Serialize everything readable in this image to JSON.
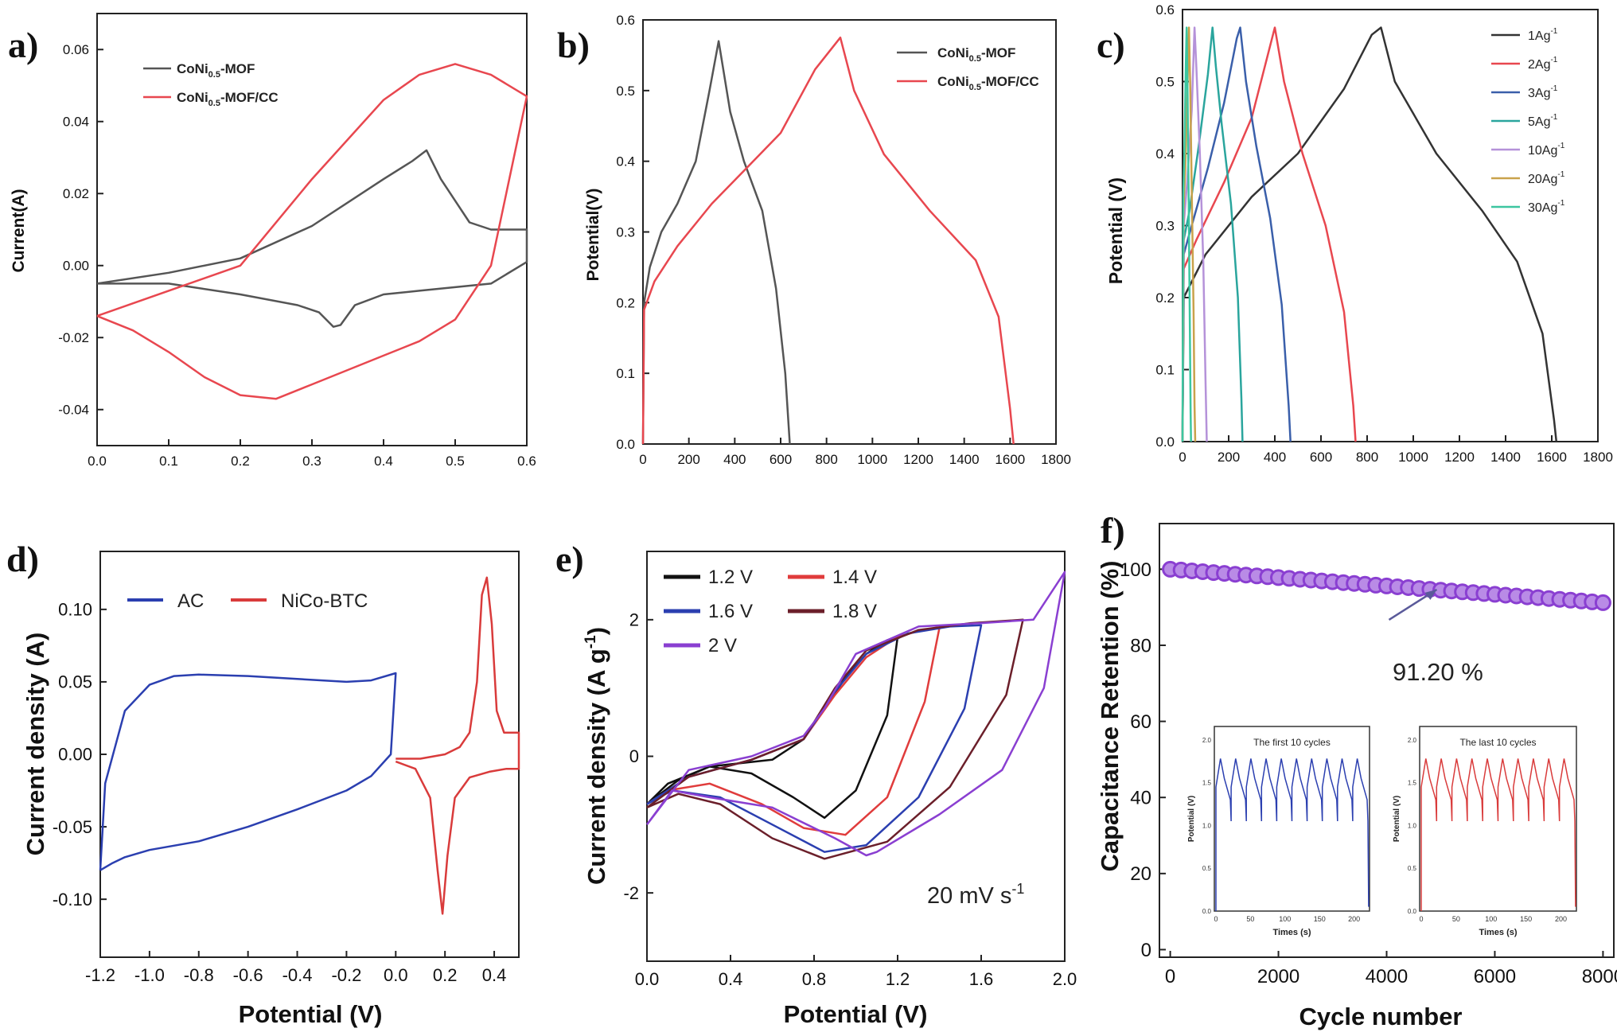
{
  "chart_data": [
    {
      "panel": "a)",
      "type": "line",
      "ylabel": "Current(A)",
      "xlim": [
        0.0,
        0.6
      ],
      "ylim": [
        -0.05,
        0.07
      ],
      "xticks": [
        "0.0",
        "0.1",
        "0.2",
        "0.3",
        "0.4",
        "0.5",
        "0.6"
      ],
      "yticks": [
        "-0.04",
        "-0.02",
        "0.00",
        "0.02",
        "0.04",
        "0.06"
      ],
      "legend_position": "top-left",
      "series": [
        {
          "name": "CoNi0.5-MOF",
          "label_main": "CoNi",
          "label_sub": "0.5",
          "label_tail": "-MOF",
          "color": "#555555",
          "x": [
            0.0,
            0.1,
            0.2,
            0.3,
            0.4,
            0.44,
            0.46,
            0.48,
            0.52,
            0.55,
            0.6,
            0.6,
            0.55,
            0.5,
            0.45,
            0.4,
            0.36,
            0.34,
            0.33,
            0.31,
            0.28,
            0.2,
            0.1,
            0.0
          ],
          "y": [
            -0.005,
            -0.002,
            0.002,
            0.011,
            0.024,
            0.029,
            0.032,
            0.024,
            0.012,
            0.01,
            0.01,
            0.001,
            -0.005,
            -0.006,
            -0.007,
            -0.008,
            -0.011,
            -0.0165,
            -0.017,
            -0.013,
            -0.011,
            -0.008,
            -0.005,
            -0.005
          ]
        },
        {
          "name": "CoNi0.5-MOF/CC",
          "label_main": "CoNi",
          "label_sub": "0.5",
          "label_tail": "-MOF/CC",
          "color": "#e8474f",
          "x": [
            0.0,
            0.1,
            0.2,
            0.3,
            0.4,
            0.45,
            0.5,
            0.55,
            0.6,
            0.6,
            0.55,
            0.5,
            0.45,
            0.4,
            0.35,
            0.3,
            0.25,
            0.2,
            0.15,
            0.1,
            0.05,
            0.0
          ],
          "y": [
            -0.014,
            -0.007,
            0.0,
            0.024,
            0.046,
            0.053,
            0.056,
            0.053,
            0.047,
            0.047,
            0.0,
            -0.015,
            -0.021,
            -0.025,
            -0.029,
            -0.033,
            -0.037,
            -0.036,
            -0.031,
            -0.024,
            -0.018,
            -0.014
          ]
        }
      ]
    },
    {
      "panel": "b)",
      "type": "line",
      "ylabel": "Potential(V)",
      "xlim": [
        0,
        1800
      ],
      "ylim": [
        0.0,
        0.6
      ],
      "xticks": [
        "0",
        "200",
        "400",
        "600",
        "800",
        "1000",
        "1200",
        "1400",
        "1600",
        "1800"
      ],
      "yticks": [
        "0.0",
        "0.1",
        "0.2",
        "0.3",
        "0.4",
        "0.5",
        "0.6"
      ],
      "legend_position": "top-right",
      "series": [
        {
          "name": "CoNi0.5-MOF",
          "label_main": "CoNi",
          "label_sub": "0.5",
          "label_tail": "-MOF",
          "color": "#555555",
          "x": [
            0,
            5,
            30,
            80,
            150,
            230,
            290,
            330,
            380,
            440,
            520,
            580,
            620,
            640
          ],
          "y": [
            0.0,
            0.2,
            0.25,
            0.3,
            0.34,
            0.4,
            0.5,
            0.57,
            0.47,
            0.4,
            0.33,
            0.22,
            0.1,
            0.0
          ]
        },
        {
          "name": "CoNi0.5-MOF/CC",
          "label_main": "CoNi",
          "label_sub": "0.5",
          "label_tail": "-MOF/CC",
          "color": "#e8474f",
          "x": [
            0,
            5,
            50,
            150,
            300,
            450,
            600,
            750,
            860,
            920,
            1050,
            1250,
            1450,
            1550,
            1600,
            1615
          ],
          "y": [
            0.0,
            0.19,
            0.23,
            0.28,
            0.34,
            0.39,
            0.44,
            0.53,
            0.575,
            0.5,
            0.41,
            0.33,
            0.26,
            0.18,
            0.05,
            0.0
          ]
        }
      ]
    },
    {
      "panel": "c)",
      "type": "line",
      "ylabel": "Potential (V)",
      "xlim": [
        0,
        1800
      ],
      "ylim": [
        0.0,
        0.6
      ],
      "xticks": [
        "0",
        "200",
        "400",
        "600",
        "800",
        "1000",
        "1200",
        "1400",
        "1600",
        "1800"
      ],
      "yticks": [
        "0.0",
        "0.1",
        "0.2",
        "0.3",
        "0.4",
        "0.5",
        "0.6"
      ],
      "legend_position": "top-right",
      "series": [
        {
          "name": "1Ag-1",
          "label_main": "1Ag",
          "label_sup": "-1",
          "color": "#333333",
          "x": [
            0,
            5,
            100,
            300,
            500,
            700,
            820,
            860,
            920,
            1100,
            1300,
            1450,
            1560,
            1610,
            1620
          ],
          "y": [
            0.0,
            0.2,
            0.26,
            0.34,
            0.4,
            0.49,
            0.565,
            0.575,
            0.5,
            0.4,
            0.32,
            0.25,
            0.15,
            0.03,
            0.0
          ]
        },
        {
          "name": "2Ag-1",
          "label_main": "2Ag",
          "label_sup": "-1",
          "color": "#e8474f",
          "x": [
            0,
            5,
            60,
            180,
            300,
            380,
            400,
            440,
            520,
            620,
            700,
            740,
            750
          ],
          "y": [
            0.0,
            0.24,
            0.28,
            0.36,
            0.45,
            0.55,
            0.575,
            0.5,
            0.4,
            0.3,
            0.18,
            0.05,
            0.0
          ]
        },
        {
          "name": "3Ag-1",
          "label_main": "3Ag",
          "label_sup": "-1",
          "color": "#3a5faa",
          "x": [
            0,
            5,
            40,
            110,
            180,
            235,
            250,
            275,
            320,
            380,
            430,
            460,
            468
          ],
          "y": [
            0.0,
            0.26,
            0.3,
            0.38,
            0.47,
            0.56,
            0.575,
            0.5,
            0.41,
            0.31,
            0.19,
            0.05,
            0.0
          ]
        },
        {
          "name": "5Ag-1",
          "label_main": "5Ag",
          "label_sup": "-1",
          "color": "#2aa59d",
          "x": [
            0,
            5,
            30,
            70,
            110,
            130,
            145,
            170,
            210,
            240,
            255,
            260
          ],
          "y": [
            0.0,
            0.28,
            0.32,
            0.41,
            0.51,
            0.575,
            0.52,
            0.44,
            0.33,
            0.2,
            0.06,
            0.0
          ]
        },
        {
          "name": "10Ag-1",
          "label_main": "10Ag",
          "label_sup": "-1",
          "color": "#b592d9",
          "x": [
            0,
            5,
            20,
            40,
            52,
            60,
            75,
            90,
            100,
            105
          ],
          "y": [
            0.0,
            0.3,
            0.36,
            0.46,
            0.575,
            0.52,
            0.4,
            0.25,
            0.08,
            0.0
          ]
        },
        {
          "name": "20Ag-1",
          "label_main": "20Ag",
          "label_sup": "-1",
          "color": "#c9a24b",
          "x": [
            0,
            4,
            12,
            22,
            28,
            33,
            40,
            48,
            52,
            55
          ],
          "y": [
            0.0,
            0.32,
            0.38,
            0.5,
            0.575,
            0.5,
            0.35,
            0.18,
            0.05,
            0.0
          ]
        },
        {
          "name": "30Ag-1",
          "label_main": "30Ag",
          "label_sup": "-1",
          "color": "#3cc6a0",
          "x": [
            0,
            3,
            8,
            14,
            18,
            22,
            27,
            32,
            35,
            37
          ],
          "y": [
            0.0,
            0.34,
            0.4,
            0.52,
            0.575,
            0.48,
            0.33,
            0.15,
            0.04,
            0.0
          ]
        }
      ]
    },
    {
      "panel": "d)",
      "type": "line",
      "xlabel": "Potential (V)",
      "ylabel": "Current density (A)",
      "xlim": [
        -1.2,
        0.5
      ],
      "ylim": [
        -0.14,
        0.14
      ],
      "xticks": [
        "-1.2",
        "-1.0",
        "-0.8",
        "-0.6",
        "-0.4",
        "-0.2",
        "0.0",
        "0.2",
        "0.4"
      ],
      "yticks": [
        "-0.10",
        "-0.05",
        "0.00",
        "0.05",
        "0.10"
      ],
      "legend_position": "top-left",
      "series": [
        {
          "name": "AC",
          "color": "#2b3fb0",
          "x": [
            -1.2,
            -1.18,
            -1.1,
            -1.0,
            -0.9,
            -0.8,
            -0.6,
            -0.4,
            -0.2,
            -0.1,
            0.0,
            -0.02,
            -0.1,
            -0.2,
            -0.4,
            -0.6,
            -0.8,
            -1.0,
            -1.1,
            -1.15,
            -1.2
          ],
          "y": [
            -0.08,
            -0.02,
            0.03,
            0.048,
            0.054,
            0.055,
            0.054,
            0.052,
            0.05,
            0.051,
            0.056,
            0.0,
            -0.015,
            -0.025,
            -0.038,
            -0.05,
            -0.06,
            -0.066,
            -0.071,
            -0.075,
            -0.08
          ]
        },
        {
          "name": "NiCo-BTC",
          "color": "#d93b3b",
          "x": [
            0.0,
            0.1,
            0.2,
            0.26,
            0.3,
            0.33,
            0.35,
            0.37,
            0.39,
            0.41,
            0.44,
            0.5,
            0.5,
            0.45,
            0.38,
            0.3,
            0.24,
            0.21,
            0.19,
            0.17,
            0.14,
            0.08,
            0.0
          ],
          "y": [
            -0.003,
            -0.003,
            0.0,
            0.005,
            0.015,
            0.05,
            0.11,
            0.122,
            0.09,
            0.03,
            0.015,
            0.015,
            -0.01,
            -0.01,
            -0.012,
            -0.016,
            -0.03,
            -0.07,
            -0.11,
            -0.08,
            -0.03,
            -0.01,
            -0.005
          ]
        }
      ]
    },
    {
      "panel": "e)",
      "type": "line",
      "xlabel": "Potential (V)",
      "ylabel": "Current density (A g-1)",
      "ylabel_main": "Current density (A g",
      "ylabel_sup": "-1",
      "ylabel_tail": ")",
      "annotation_main": "20 mV s",
      "annotation_sup": "-1",
      "xlim": [
        0.0,
        2.0
      ],
      "ylim": [
        -3.0,
        3.0
      ],
      "xticks": [
        "0.0",
        "0.4",
        "0.8",
        "1.2",
        "1.6",
        "2.0"
      ],
      "yticks": [
        "-2",
        "0",
        "2"
      ],
      "legend_position": "top-left",
      "series": [
        {
          "name": "1.2 V",
          "color": "#111111",
          "x": [
            0.0,
            0.1,
            0.3,
            0.6,
            0.75,
            0.85,
            0.95,
            1.05,
            1.15,
            1.2,
            1.15,
            1.0,
            0.85,
            0.7,
            0.5,
            0.3,
            0.15,
            0.0
          ],
          "y": [
            -0.7,
            -0.4,
            -0.15,
            -0.05,
            0.25,
            0.7,
            1.15,
            1.5,
            1.7,
            1.75,
            0.6,
            -0.5,
            -0.9,
            -0.6,
            -0.25,
            -0.15,
            -0.35,
            -0.7
          ]
        },
        {
          "name": "1.4 V",
          "color": "#e03c3c",
          "x": [
            0.0,
            0.2,
            0.5,
            0.75,
            0.9,
            1.05,
            1.2,
            1.32,
            1.4,
            1.33,
            1.15,
            0.95,
            0.75,
            0.55,
            0.3,
            0.1,
            0.0
          ],
          "y": [
            -0.7,
            -0.3,
            -0.05,
            0.25,
            0.9,
            1.45,
            1.75,
            1.85,
            1.88,
            0.8,
            -0.6,
            -1.15,
            -1.05,
            -0.7,
            -0.4,
            -0.5,
            -0.7
          ]
        },
        {
          "name": "1.6 V",
          "color": "#2b3fb0",
          "x": [
            0.0,
            0.2,
            0.5,
            0.75,
            0.9,
            1.05,
            1.25,
            1.45,
            1.6,
            1.52,
            1.3,
            1.05,
            0.85,
            0.6,
            0.35,
            0.12,
            0.0
          ],
          "y": [
            -0.7,
            -0.3,
            -0.05,
            0.25,
            0.95,
            1.5,
            1.8,
            1.9,
            1.92,
            0.7,
            -0.6,
            -1.3,
            -1.4,
            -1.0,
            -0.6,
            -0.5,
            -0.7
          ]
        },
        {
          "name": "1.8 V",
          "color": "#6b1f2a",
          "x": [
            0.0,
            0.2,
            0.5,
            0.75,
            0.9,
            1.05,
            1.3,
            1.55,
            1.8,
            1.72,
            1.45,
            1.15,
            0.85,
            0.6,
            0.35,
            0.15,
            0.0
          ],
          "y": [
            -0.75,
            -0.3,
            -0.05,
            0.25,
            1.0,
            1.55,
            1.85,
            1.95,
            2.0,
            0.9,
            -0.45,
            -1.25,
            -1.5,
            -1.2,
            -0.7,
            -0.55,
            -0.75
          ]
        },
        {
          "name": "2 V",
          "color": "#8a3fd1",
          "x": [
            0.0,
            0.2,
            0.5,
            0.75,
            0.85,
            1.0,
            1.3,
            1.6,
            1.85,
            2.0,
            1.9,
            1.7,
            1.4,
            1.1,
            1.05,
            0.9,
            0.6,
            0.3,
            0.12,
            0.0
          ],
          "y": [
            -1.0,
            -0.2,
            0.0,
            0.3,
            0.7,
            1.5,
            1.9,
            1.95,
            2.0,
            2.7,
            1.0,
            -0.2,
            -0.85,
            -1.4,
            -1.45,
            -1.2,
            -0.75,
            -0.6,
            -0.5,
            -1.0
          ]
        }
      ]
    },
    {
      "panel": "f)",
      "type": "scatter",
      "xlabel": "Cycle number",
      "ylabel": "Capacitance Retention (%)",
      "xlim": [
        -200,
        8200
      ],
      "ylim": [
        -2,
        112
      ],
      "xticks": [
        "0",
        "2000",
        "4000",
        "6000",
        "8000"
      ],
      "yticks": [
        "0",
        "20",
        "40",
        "60",
        "80",
        "100"
      ],
      "annotation": "91.20 %",
      "series": [
        {
          "name": "",
          "color": "#8a3fd1",
          "x_start": 0,
          "x_end": 8000,
          "points": 41,
          "y_start": 100.0,
          "y_end": 91.2
        }
      ],
      "insets": [
        {
          "title": "The first 10 cycles",
          "xlabel": "Times (s)",
          "ylabel": "Potential (V)",
          "color": "#2b3fb0",
          "xticks": [
            "0",
            "50",
            "100",
            "150",
            "200"
          ],
          "yticks": [
            "0.0",
            "0.5",
            "1.0",
            "1.5",
            "2.0"
          ],
          "cycles": 10,
          "vmin": 0.0,
          "vmax": 1.8
        },
        {
          "title": "The last 10 cycles",
          "xlabel": "Times (s)",
          "ylabel": "Potential (V)",
          "color": "#d93b3b",
          "xticks": [
            "0",
            "50",
            "100",
            "150",
            "200"
          ],
          "yticks": [
            "0.0",
            "0.5",
            "1.0",
            "1.5",
            "2.0"
          ],
          "cycles": 10,
          "vmin": 0.0,
          "vmax": 1.8
        }
      ]
    }
  ]
}
